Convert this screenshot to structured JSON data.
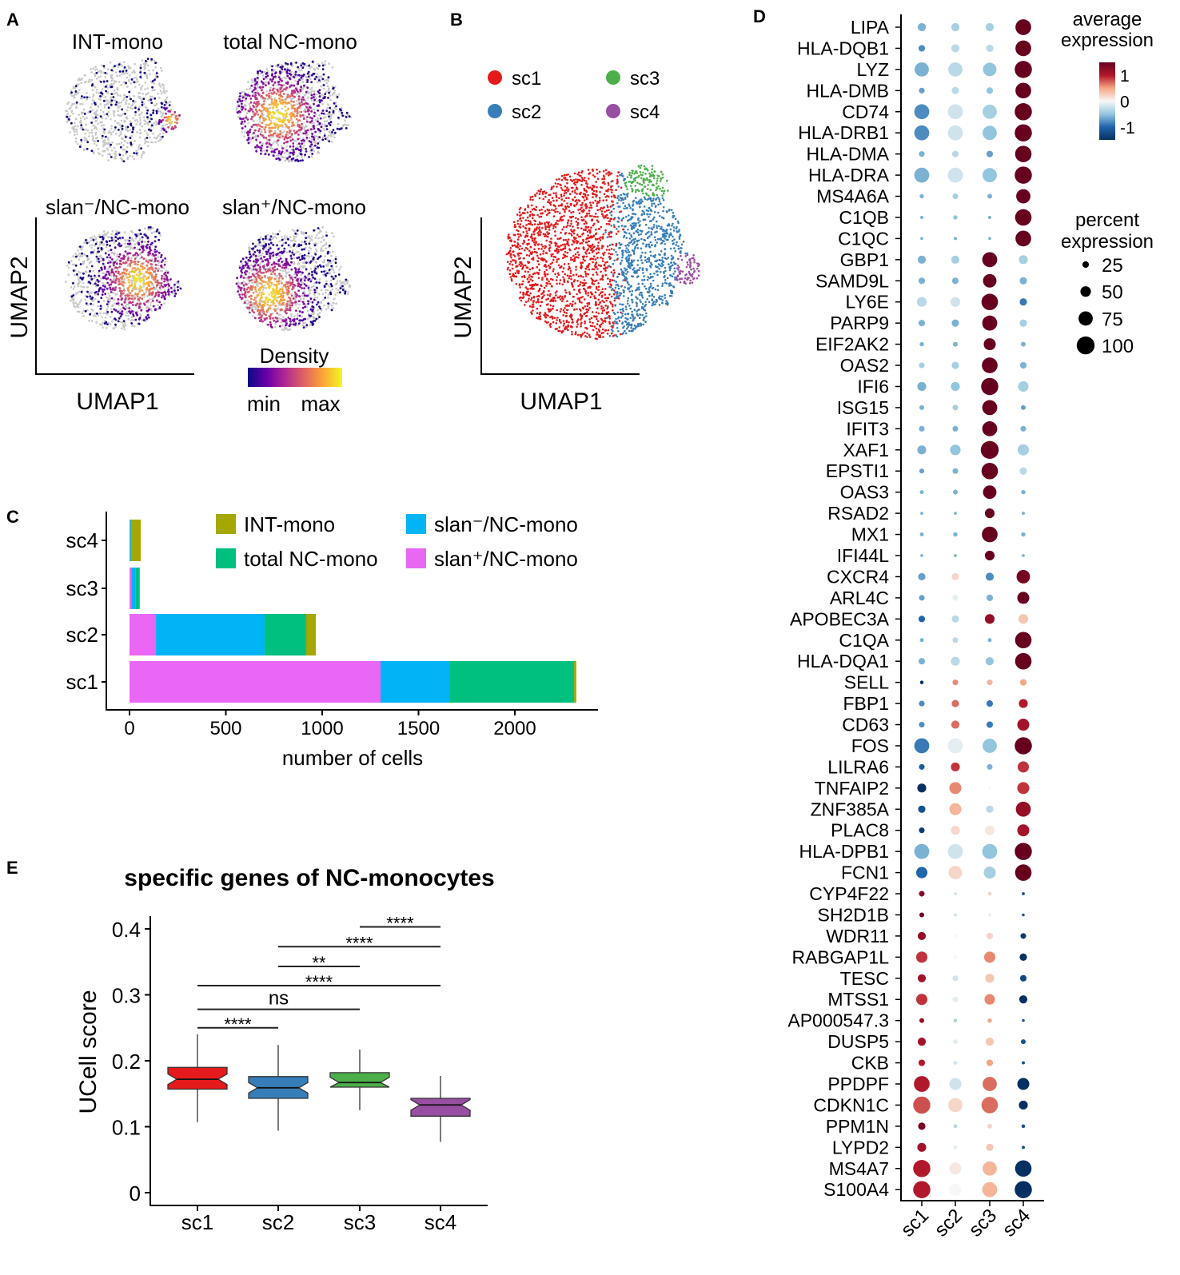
{
  "panel_labels": {
    "a": "A",
    "b": "B",
    "c": "C",
    "d": "D",
    "e": "E"
  },
  "chart_data": [
    {
      "panel": "A",
      "type": "scatter",
      "subtitle_plots": [
        "INT-mono",
        "total NC-mono",
        "slan⁻/NC-mono",
        "slan⁺/NC-mono"
      ],
      "xlabel": "UMAP1",
      "ylabel": "UMAP2",
      "legend": {
        "title": "Density",
        "min_label": "min",
        "max_label": "max",
        "placement": "bottom-right"
      },
      "colormap": [
        "#0d0887",
        "#6a00a8",
        "#b12a90",
        "#e16462",
        "#fca636",
        "#f0f921"
      ],
      "background_color": "#c8c8c8"
    },
    {
      "panel": "B",
      "type": "scatter",
      "xlabel": "UMAP1",
      "ylabel": "UMAP2",
      "legend_placement": "top",
      "clusters": [
        {
          "name": "sc1",
          "color": "#e41a1c"
        },
        {
          "name": "sc2",
          "color": "#377eb8"
        },
        {
          "name": "sc3",
          "color": "#4daf4a"
        },
        {
          "name": "sc4",
          "color": "#984ea3"
        }
      ]
    },
    {
      "panel": "C",
      "type": "bar",
      "orientation": "horizontal-stacked",
      "categories": [
        "sc1",
        "sc2",
        "sc3",
        "sc4"
      ],
      "series": [
        {
          "name": "slan⁺/NC-mono",
          "color": "#ea66f5",
          "values": [
            1303,
            137,
            10,
            2
          ]
        },
        {
          "name": "slan⁻/NC-mono",
          "color": "#00b4f5",
          "values": [
            361,
            564,
            20,
            4
          ]
        },
        {
          "name": "total NC-mono",
          "color": "#00c07f",
          "values": [
            643,
            216,
            20,
            2
          ]
        },
        {
          "name": "INT-mono",
          "color": "#a5a800",
          "values": [
            12,
            50,
            4,
            50
          ]
        }
      ],
      "legend_order": [
        "INT-mono",
        "slan⁻/NC-mono",
        "total NC-mono",
        "slan⁺/NC-mono"
      ],
      "xlabel": "number of cells",
      "xlim": [
        0,
        2400
      ],
      "xticks": [
        0,
        500,
        1000,
        1500,
        2000
      ],
      "legend_placement": "top-right"
    },
    {
      "panel": "D",
      "type": "dotplot",
      "clusters": [
        "sc1",
        "sc2",
        "sc3",
        "sc4"
      ],
      "legend_color_title": [
        "average",
        "expression"
      ],
      "color_ticks": [
        1,
        0,
        -1
      ],
      "color_range": [
        -1.5,
        1.5
      ],
      "legend_size_title": [
        "percent",
        "expression"
      ],
      "size_ticks": [
        25,
        50,
        75,
        100
      ],
      "legend_placement": "right",
      "genes": [
        {
          "gene": "LIPA",
          "pct": [
            35,
            35,
            35,
            85
          ],
          "avg": [
            -0.6,
            -0.4,
            -0.4,
            1.6
          ]
        },
        {
          "gene": "HLA-DQB1",
          "pct": [
            25,
            35,
            30,
            85
          ],
          "avg": [
            -0.8,
            -0.3,
            -0.3,
            1.6
          ]
        },
        {
          "gene": "LYZ",
          "pct": [
            75,
            75,
            70,
            95
          ],
          "avg": [
            -0.6,
            -0.3,
            -0.5,
            1.6
          ]
        },
        {
          "gene": "HLA-DMB",
          "pct": [
            20,
            30,
            25,
            85
          ],
          "avg": [
            -0.7,
            -0.3,
            -0.5,
            1.6
          ]
        },
        {
          "gene": "CD74",
          "pct": [
            80,
            80,
            75,
            95
          ],
          "avg": [
            -0.8,
            -0.2,
            -0.4,
            1.6
          ]
        },
        {
          "gene": "HLA-DRB1",
          "pct": [
            80,
            80,
            75,
            95
          ],
          "avg": [
            -0.8,
            -0.2,
            -0.5,
            1.6
          ]
        },
        {
          "gene": "HLA-DMA",
          "pct": [
            20,
            25,
            25,
            90
          ],
          "avg": [
            -0.6,
            -0.3,
            -0.7,
            1.6
          ]
        },
        {
          "gene": "HLA-DRA",
          "pct": [
            80,
            80,
            75,
            95
          ],
          "avg": [
            -0.6,
            -0.2,
            -0.5,
            1.6
          ]
        },
        {
          "gene": "MS4A6A",
          "pct": [
            12,
            20,
            15,
            75
          ],
          "avg": [
            -0.6,
            -0.4,
            -0.6,
            1.6
          ]
        },
        {
          "gene": "C1QB",
          "pct": [
            6,
            12,
            6,
            90
          ],
          "avg": [
            -0.6,
            -0.5,
            -0.6,
            1.6
          ]
        },
        {
          "gene": "C1QC",
          "pct": [
            5,
            6,
            5,
            85
          ],
          "avg": [
            -0.6,
            -0.6,
            -0.6,
            1.6
          ]
        },
        {
          "gene": "GBP1",
          "pct": [
            35,
            35,
            80,
            40
          ],
          "avg": [
            -0.6,
            -0.4,
            1.6,
            -0.4
          ]
        },
        {
          "gene": "SAMD9L",
          "pct": [
            25,
            25,
            70,
            30
          ],
          "avg": [
            -0.6,
            -0.6,
            1.6,
            -0.6
          ]
        },
        {
          "gene": "LY6E",
          "pct": [
            45,
            45,
            90,
            30
          ],
          "avg": [
            -0.3,
            -0.2,
            1.6,
            -0.9
          ]
        },
        {
          "gene": "PARP9",
          "pct": [
            25,
            30,
            80,
            30
          ],
          "avg": [
            -0.6,
            -0.6,
            1.6,
            -0.4
          ]
        },
        {
          "gene": "EIF2AK2",
          "pct": [
            12,
            15,
            60,
            15
          ],
          "avg": [
            -0.6,
            -0.6,
            1.6,
            -0.6
          ]
        },
        {
          "gene": "OAS2",
          "pct": [
            20,
            30,
            85,
            25
          ],
          "avg": [
            -0.4,
            -0.4,
            1.6,
            -0.6
          ]
        },
        {
          "gene": "IFI6",
          "pct": [
            40,
            40,
            95,
            50
          ],
          "avg": [
            -0.6,
            -0.5,
            1.6,
            -0.4
          ]
        },
        {
          "gene": "ISG15",
          "pct": [
            15,
            20,
            80,
            15
          ],
          "avg": [
            -0.6,
            -0.4,
            1.6,
            -0.7
          ]
        },
        {
          "gene": "IFIT3",
          "pct": [
            20,
            20,
            80,
            20
          ],
          "avg": [
            -0.6,
            -0.6,
            1.6,
            -0.6
          ]
        },
        {
          "gene": "XAF1",
          "pct": [
            40,
            50,
            100,
            55
          ],
          "avg": [
            -0.6,
            -0.5,
            1.6,
            -0.4
          ]
        },
        {
          "gene": "EPSTI1",
          "pct": [
            15,
            20,
            90,
            30
          ],
          "avg": [
            -0.7,
            -0.6,
            1.6,
            -0.3
          ]
        },
        {
          "gene": "OAS3",
          "pct": [
            10,
            15,
            70,
            12
          ],
          "avg": [
            -0.6,
            -0.6,
            1.6,
            -0.6
          ]
        },
        {
          "gene": "RSAD2",
          "pct": [
            5,
            5,
            45,
            6
          ],
          "avg": [
            -0.6,
            -0.6,
            1.6,
            -0.6
          ]
        },
        {
          "gene": "MX1",
          "pct": [
            10,
            12,
            85,
            12
          ],
          "avg": [
            -0.6,
            -0.6,
            1.6,
            -0.6
          ]
        },
        {
          "gene": "IFI44L",
          "pct": [
            5,
            5,
            45,
            5
          ],
          "avg": [
            -0.6,
            -0.6,
            1.6,
            -0.6
          ]
        },
        {
          "gene": "CXCR4",
          "pct": [
            30,
            30,
            35,
            70
          ],
          "avg": [
            -0.7,
            0.2,
            -0.8,
            1.4
          ]
        },
        {
          "gene": "ARL4C",
          "pct": [
            20,
            20,
            25,
            60
          ],
          "avg": [
            -0.7,
            -0.1,
            -0.6,
            1.5
          ]
        },
        {
          "gene": "APOBEC3A",
          "pct": [
            25,
            30,
            45,
            45
          ],
          "avg": [
            -1.0,
            -0.3,
            1.2,
            0.3
          ]
        },
        {
          "gene": "C1QA",
          "pct": [
            10,
            20,
            10,
            90
          ],
          "avg": [
            -0.6,
            -0.3,
            -0.6,
            1.7
          ]
        },
        {
          "gene": "HLA-DQA1",
          "pct": [
            25,
            40,
            35,
            90
          ],
          "avg": [
            -0.6,
            -0.3,
            -0.5,
            1.7
          ]
        },
        {
          "gene": "SELL",
          "pct": [
            8,
            20,
            20,
            25
          ],
          "avg": [
            -1.5,
            0.6,
            0.4,
            0.5
          ]
        },
        {
          "gene": "FBP1",
          "pct": [
            20,
            30,
            25,
            40
          ],
          "avg": [
            -0.8,
            0.7,
            -0.9,
            1.0
          ]
        },
        {
          "gene": "CD63",
          "pct": [
            20,
            35,
            25,
            60
          ],
          "avg": [
            -0.8,
            0.7,
            -0.9,
            1.1
          ]
        },
        {
          "gene": "FOS",
          "pct": [
            80,
            80,
            75,
            95
          ],
          "avg": [
            -0.9,
            -0.1,
            -0.5,
            1.6
          ]
        },
        {
          "gene": "LILRA6",
          "pct": [
            20,
            40,
            20,
            55
          ],
          "avg": [
            -1.1,
            0.9,
            -0.6,
            0.9
          ]
        },
        {
          "gene": "TNFAIP2",
          "pct": [
            40,
            60,
            5,
            60
          ],
          "avg": [
            -1.6,
            0.6,
            0,
            0.9
          ]
        },
        {
          "gene": "ZNF385A",
          "pct": [
            30,
            60,
            30,
            80
          ],
          "avg": [
            -1.2,
            0.4,
            -0.3,
            1.2
          ]
        },
        {
          "gene": "PLAC8",
          "pct": [
            20,
            40,
            45,
            60
          ],
          "avg": [
            -1.4,
            0.2,
            0.1,
            1.1
          ]
        },
        {
          "gene": "HLA-DPB1",
          "pct": [
            80,
            80,
            80,
            95
          ],
          "avg": [
            -0.6,
            -0.2,
            -0.5,
            1.7
          ]
        },
        {
          "gene": "FCN1",
          "pct": [
            55,
            70,
            60,
            90
          ],
          "avg": [
            -1.0,
            0.2,
            -0.4,
            1.5
          ]
        },
        {
          "gene": "CYP4F22",
          "pct": [
            20,
            5,
            10,
            5
          ],
          "avg": [
            1.3,
            -0.2,
            0.2,
            -1.2
          ]
        },
        {
          "gene": "SH2D1B",
          "pct": [
            15,
            5,
            5,
            4
          ],
          "avg": [
            1.4,
            -0.2,
            0.1,
            -1.2
          ]
        },
        {
          "gene": "WDR11",
          "pct": [
            35,
            5,
            25,
            20
          ],
          "avg": [
            1.2,
            0,
            0.2,
            -1.4
          ]
        },
        {
          "gene": "RABGAP1L",
          "pct": [
            55,
            10,
            55,
            30
          ],
          "avg": [
            0.9,
            0,
            0.6,
            -1.5
          ]
        },
        {
          "gene": "TESC",
          "pct": [
            35,
            20,
            40,
            25
          ],
          "avg": [
            1.1,
            -0.2,
            0.3,
            -1.3
          ]
        },
        {
          "gene": "MTSS1",
          "pct": [
            55,
            20,
            50,
            35
          ],
          "avg": [
            0.9,
            -0.1,
            0.6,
            -1.5
          ]
        },
        {
          "gene": "AP000547.3",
          "pct": [
            15,
            8,
            12,
            4
          ],
          "avg": [
            1.2,
            -0.4,
            0.5,
            -1.2
          ]
        },
        {
          "gene": "DUSP5",
          "pct": [
            35,
            15,
            35,
            15
          ],
          "avg": [
            1.1,
            -0.1,
            0.3,
            -1.2
          ]
        },
        {
          "gene": "CKB",
          "pct": [
            25,
            10,
            25,
            6
          ],
          "avg": [
            1.0,
            -0.2,
            0.5,
            -1.2
          ]
        },
        {
          "gene": "PPDPF",
          "pct": [
            85,
            60,
            75,
            60
          ],
          "avg": [
            1.0,
            -0.2,
            0.7,
            -1.5
          ]
        },
        {
          "gene": "CDKN1C",
          "pct": [
            95,
            75,
            90,
            40
          ],
          "avg": [
            0.8,
            0.2,
            0.7,
            -1.8
          ]
        },
        {
          "gene": "PPM1N",
          "pct": [
            30,
            10,
            15,
            8
          ],
          "avg": [
            1.4,
            -0.3,
            0.2,
            -1.2
          ]
        },
        {
          "gene": "LYPD2",
          "pct": [
            40,
            10,
            30,
            6
          ],
          "avg": [
            1.1,
            -0.1,
            0.3,
            -1.2
          ]
        },
        {
          "gene": "MS4A7",
          "pct": [
            95,
            60,
            75,
            90
          ],
          "avg": [
            1.0,
            0.1,
            0.4,
            -1.5
          ]
        },
        {
          "gene": "S100A4",
          "pct": [
            95,
            60,
            80,
            95
          ],
          "avg": [
            1.0,
            0,
            0.4,
            -1.5
          ]
        }
      ]
    },
    {
      "panel": "E",
      "type": "box",
      "title": "specific genes of NC-monocytes",
      "ylabel": "UCell score",
      "ylim": [
        0,
        0.42
      ],
      "yticks": [
        0,
        0.1,
        0.2,
        0.3,
        0.4
      ],
      "yticklabels": [
        "0",
        "0.1",
        "0.2",
        "0.3",
        "0.4"
      ],
      "categories": [
        "sc1",
        "sc2",
        "sc3",
        "sc4"
      ],
      "colors": [
        "#e41a1c",
        "#377eb8",
        "#4daf4a",
        "#984ea3"
      ],
      "boxes": [
        {
          "min": 0.107,
          "q1": 0.157,
          "median": 0.172,
          "q3": 0.19,
          "max": 0.24
        },
        {
          "min": 0.094,
          "q1": 0.143,
          "median": 0.159,
          "q3": 0.176,
          "max": 0.224
        },
        {
          "min": 0.125,
          "q1": 0.16,
          "median": 0.167,
          "q3": 0.182,
          "max": 0.217
        },
        {
          "min": 0.077,
          "q1": 0.116,
          "median": 0.133,
          "q3": 0.143,
          "max": 0.177
        }
      ],
      "comparisons": [
        {
          "from": "sc1",
          "to": "sc2",
          "label": "****",
          "y": 0.25
        },
        {
          "from": "sc1",
          "to": "sc3",
          "label": "ns",
          "y": 0.278
        },
        {
          "from": "sc1",
          "to": "sc4",
          "label": "****",
          "y": 0.314
        },
        {
          "from": "sc2",
          "to": "sc3",
          "label": "**",
          "y": 0.343
        },
        {
          "from": "sc2",
          "to": "sc4",
          "label": "****",
          "y": 0.373
        },
        {
          "from": "sc3",
          "to": "sc4",
          "label": "****",
          "y": 0.403
        }
      ]
    }
  ]
}
